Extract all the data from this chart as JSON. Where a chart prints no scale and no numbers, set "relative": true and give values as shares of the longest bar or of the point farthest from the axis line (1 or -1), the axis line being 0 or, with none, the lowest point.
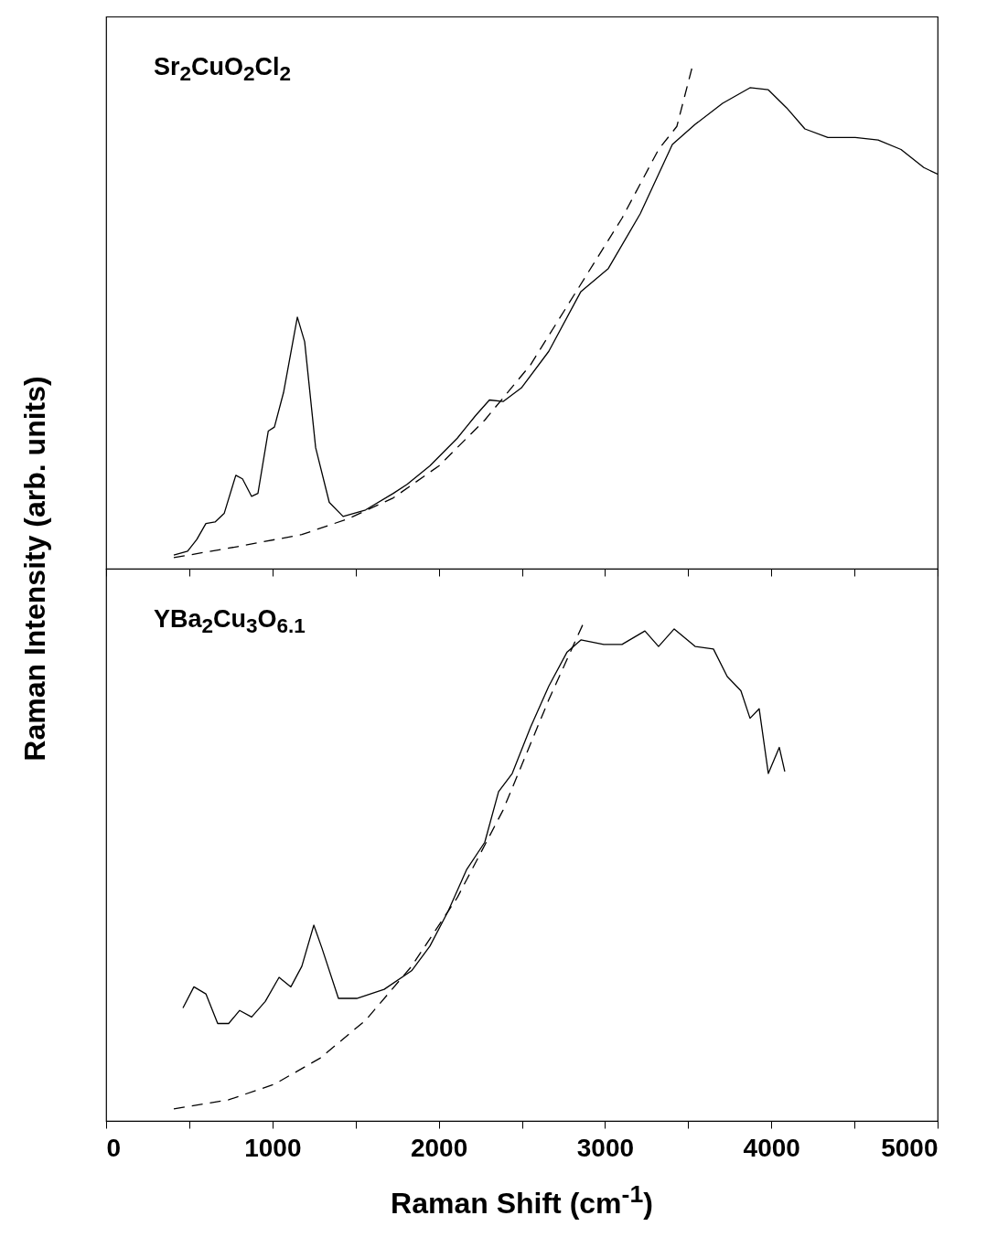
{
  "chart_data": [
    {
      "type": "line",
      "relative": true,
      "ylabel": "Raman Intensity (arb. units)",
      "annotations": [
        "Sr$_{2}$CuO$_{2}$Cl$_{2}$"
      ],
      "xlim": [
        0,
        5000
      ],
      "xticks": [
        0,
        {
          "value": 500,
          "label": null
        },
        1000,
        {
          "value": 1500,
          "label": null
        },
        2000,
        {
          "value": 2500,
          "label": null
        },
        3000,
        {
          "value": 3500,
          "label": null
        },
        4000,
        {
          "value": 4500,
          "label": null
        },
        5000
      ],
      "tick_labels": false,
      "series": [
        {
          "color": "#000000",
          "line_style": "solid",
          "x": [
            407,
            490,
            545,
            600,
            655,
            710,
            780,
            820,
            875,
            913,
            975,
            1012,
            1067,
            1150,
            1194,
            1260,
            1342,
            1425,
            1560,
            1727,
            1810,
            1947,
            2112,
            2222,
            2305,
            2387,
            2497,
            2662,
            2855,
            3020,
            3212,
            3405,
            3542,
            3707,
            3872,
            3982,
            4092,
            4202,
            4340,
            4505,
            4642,
            4780,
            4917,
            5000
          ],
          "values": [
            0.027,
            0.035,
            0.058,
            0.09,
            0.093,
            0.11,
            0.186,
            0.179,
            0.144,
            0.15,
            0.274,
            0.282,
            0.351,
            0.501,
            0.452,
            0.241,
            0.132,
            0.104,
            0.117,
            0.15,
            0.168,
            0.205,
            0.26,
            0.305,
            0.336,
            0.333,
            0.36,
            0.433,
            0.552,
            0.598,
            0.707,
            0.845,
            0.885,
            0.927,
            0.958,
            0.954,
            0.918,
            0.876,
            0.859,
            0.859,
            0.854,
            0.835,
            0.799,
            0.786
          ]
        },
        {
          "color": "#000000",
          "line_style": "dashed",
          "x": [
            407,
            792,
            1177,
            1452,
            1727,
            2002,
            2277,
            2552,
            2827,
            3102,
            3322,
            3432,
            3525
          ],
          "values": [
            0.022,
            0.044,
            0.068,
            0.099,
            0.141,
            0.205,
            0.296,
            0.406,
            0.552,
            0.698,
            0.835,
            0.881,
            1.0
          ]
        }
      ]
    },
    {
      "type": "line",
      "relative": true,
      "xlabel": "Raman Shift (cm$^{-1}$)",
      "annotations": [
        "YBa$_{2}$Cu$_{3}$O$_{6.1}$"
      ],
      "xlim": [
        0,
        5000
      ],
      "xticks": [
        0,
        {
          "value": 500,
          "label": null
        },
        1000,
        {
          "value": 1500,
          "label": null
        },
        2000,
        {
          "value": 2500,
          "label": null
        },
        3000,
        {
          "value": 3500,
          "label": null
        },
        4000,
        {
          "value": 4500,
          "label": null
        },
        5000
      ],
      "tick_labels": "x",
      "series": [
        {
          "color": "#000000",
          "line_style": "solid",
          "x": [
            462,
            528,
            600,
            671,
            737,
            803,
            875,
            957,
            1040,
            1111,
            1177,
            1249,
            1298,
            1397,
            1507,
            1672,
            1837,
            1947,
            2057,
            2167,
            2277,
            2360,
            2442,
            2552,
            2662,
            2772,
            2855,
            2992,
            3102,
            3240,
            3322,
            3416,
            3542,
            3652,
            3735,
            3817,
            3872,
            3927,
            3982,
            4048,
            4081
          ],
          "values": [
            0.225,
            0.267,
            0.253,
            0.194,
            0.194,
            0.22,
            0.207,
            0.238,
            0.286,
            0.267,
            0.308,
            0.39,
            0.344,
            0.244,
            0.244,
            0.262,
            0.299,
            0.348,
            0.418,
            0.5,
            0.555,
            0.656,
            0.692,
            0.784,
            0.866,
            0.934,
            0.958,
            0.949,
            0.949,
            0.976,
            0.945,
            0.98,
            0.945,
            0.94,
            0.885,
            0.857,
            0.802,
            0.821,
            0.692,
            0.744,
            0.696
          ]
        },
        {
          "color": "#000000",
          "line_style": "dashed",
          "x": [
            407,
            737,
            1012,
            1287,
            1562,
            1837,
            2112,
            2387,
            2662,
            2882
          ],
          "values": [
            0.024,
            0.042,
            0.073,
            0.125,
            0.201,
            0.308,
            0.445,
            0.619,
            0.839,
            1.0
          ]
        }
      ]
    }
  ]
}
